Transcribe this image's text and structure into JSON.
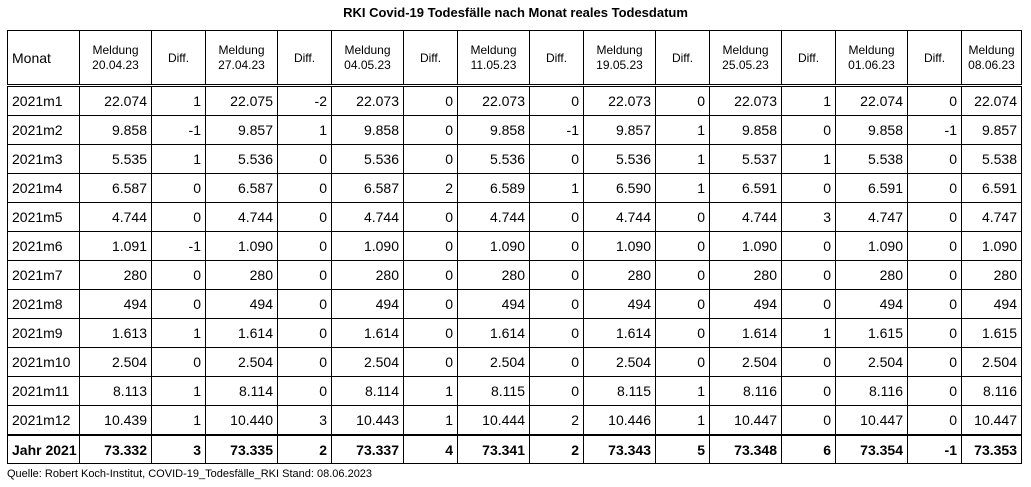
{
  "title": "RKI Covid-19 Todesfälle nach Monat reales Todesdatum",
  "table": {
    "month_header": "Monat",
    "diff_header": "Diff.",
    "meldung_label": "Meldung",
    "dates": [
      "20.04.23",
      "27.04.23",
      "04.05.23",
      "11.05.23",
      "19.05.23",
      "25.05.23",
      "01.06.23",
      "08.06.23"
    ],
    "rows": [
      {
        "month": "2021m1",
        "cells": [
          "22.074",
          "1",
          "22.075",
          "-2",
          "22.073",
          "0",
          "22.073",
          "0",
          "22.073",
          "0",
          "22.073",
          "1",
          "22.074",
          "0",
          "22.074"
        ]
      },
      {
        "month": "2021m2",
        "cells": [
          "9.858",
          "-1",
          "9.857",
          "1",
          "9.858",
          "0",
          "9.858",
          "-1",
          "9.857",
          "1",
          "9.858",
          "0",
          "9.858",
          "-1",
          "9.857"
        ]
      },
      {
        "month": "2021m3",
        "cells": [
          "5.535",
          "1",
          "5.536",
          "0",
          "5.536",
          "0",
          "5.536",
          "0",
          "5.536",
          "1",
          "5.537",
          "1",
          "5.538",
          "0",
          "5.538"
        ]
      },
      {
        "month": "2021m4",
        "cells": [
          "6.587",
          "0",
          "6.587",
          "0",
          "6.587",
          "2",
          "6.589",
          "1",
          "6.590",
          "1",
          "6.591",
          "0",
          "6.591",
          "0",
          "6.591"
        ]
      },
      {
        "month": "2021m5",
        "cells": [
          "4.744",
          "0",
          "4.744",
          "0",
          "4.744",
          "0",
          "4.744",
          "0",
          "4.744",
          "0",
          "4.744",
          "3",
          "4.747",
          "0",
          "4.747"
        ]
      },
      {
        "month": "2021m6",
        "cells": [
          "1.091",
          "-1",
          "1.090",
          "0",
          "1.090",
          "0",
          "1.090",
          "0",
          "1.090",
          "0",
          "1.090",
          "0",
          "1.090",
          "0",
          "1.090"
        ]
      },
      {
        "month": "2021m7",
        "cells": [
          "280",
          "0",
          "280",
          "0",
          "280",
          "0",
          "280",
          "0",
          "280",
          "0",
          "280",
          "0",
          "280",
          "0",
          "280"
        ]
      },
      {
        "month": "2021m8",
        "cells": [
          "494",
          "0",
          "494",
          "0",
          "494",
          "0",
          "494",
          "0",
          "494",
          "0",
          "494",
          "0",
          "494",
          "0",
          "494"
        ]
      },
      {
        "month": "2021m9",
        "cells": [
          "1.613",
          "1",
          "1.614",
          "0",
          "1.614",
          "0",
          "1.614",
          "0",
          "1.614",
          "0",
          "1.614",
          "1",
          "1.615",
          "0",
          "1.615"
        ]
      },
      {
        "month": "2021m10",
        "cells": [
          "2.504",
          "0",
          "2.504",
          "0",
          "2.504",
          "0",
          "2.504",
          "0",
          "2.504",
          "0",
          "2.504",
          "0",
          "2.504",
          "0",
          "2.504"
        ]
      },
      {
        "month": "2021m11",
        "cells": [
          "8.113",
          "1",
          "8.114",
          "0",
          "8.114",
          "1",
          "8.115",
          "0",
          "8.115",
          "1",
          "8.116",
          "0",
          "8.116",
          "0",
          "8.116"
        ]
      },
      {
        "month": "2021m12",
        "cells": [
          "10.439",
          "1",
          "10.440",
          "3",
          "10.443",
          "1",
          "10.444",
          "2",
          "10.446",
          "1",
          "10.447",
          "0",
          "10.447",
          "0",
          "10.447"
        ]
      }
    ],
    "total": {
      "month": "Jahr 2021",
      "cells": [
        "73.332",
        "3",
        "73.335",
        "2",
        "73.337",
        "4",
        "73.341",
        "2",
        "73.343",
        "5",
        "73.348",
        "6",
        "73.354",
        "-1",
        "73.353"
      ]
    }
  },
  "source": "Quelle: Robert Koch-Institut, COVID-19_Todesfälle_RKI Stand: 08.06.2023"
}
